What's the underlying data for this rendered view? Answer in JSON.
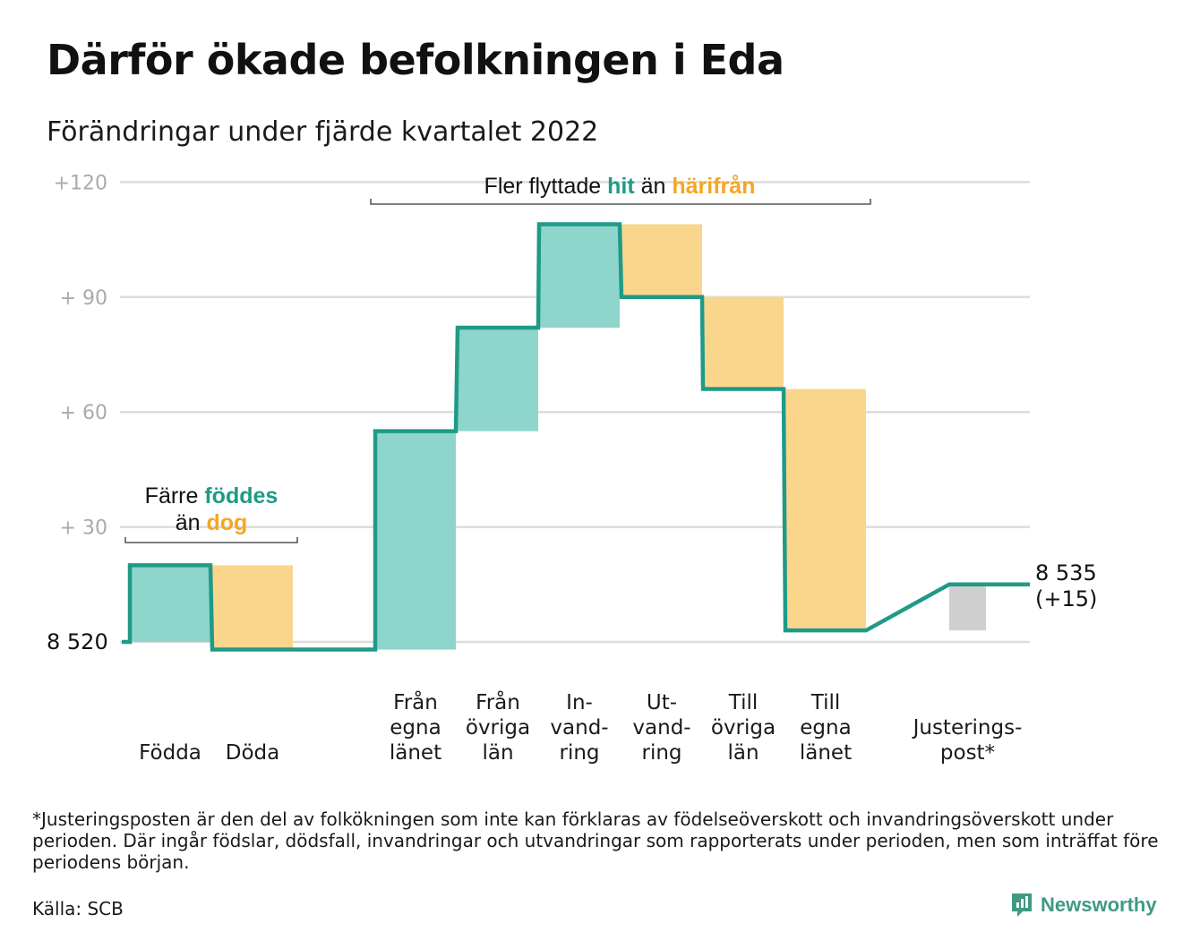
{
  "title": "Därför ökade befolkningen i Eda",
  "subtitle": "Förändringar under fjärde kvartalet 2022",
  "footnote": "*Justeringsposten är den del av folkökningen som inte kan förklaras av födelseöverskott och invandringsöverskott under perioden. Där ingår födslar, dödsfall, invandringar och utvandringar som rapporterats under perioden, men som inträffat före periodens början.",
  "source": "Källa: SCB",
  "brand": {
    "name": "Newsworthy"
  },
  "colors": {
    "line": "#1f9a87",
    "increase": "#8ed5cc",
    "decrease": "#fad68d",
    "adjustment": "#cfcfcf",
    "teal_text": "#1f9a87",
    "orange_text": "#f5a623",
    "grid": "#dddddd",
    "tick": "#aaaaaa"
  },
  "annotations": {
    "birth_death": {
      "line1_pre": "Färre ",
      "line1_hl": "föddes",
      "line2_pre": "än ",
      "line2_hl": "dog"
    },
    "migration": {
      "pre": "Fler flyttade ",
      "hl1": "hit",
      "mid": " än ",
      "hl2": "härifrån"
    }
  },
  "chart_data": {
    "type": "waterfall",
    "start_label": "8 520",
    "end_label_line1": "8 535",
    "end_label_line2": "(+15)",
    "start_value": 8520,
    "end_value": 8535,
    "y_ticks": [
      "+120",
      "+ 90",
      "+ 60",
      "+ 30"
    ],
    "y_tick_values": [
      120,
      90,
      60,
      30
    ],
    "ylim": [
      0,
      120
    ],
    "categories": [
      {
        "label": [
          "Födda"
        ],
        "change": 20
      },
      {
        "label": [
          "Döda"
        ],
        "change": -22
      },
      {
        "label": [
          "Från",
          "egna",
          "länet"
        ],
        "change": 57
      },
      {
        "label": [
          "Från",
          "övriga",
          "län"
        ],
        "change": 27
      },
      {
        "label": [
          "In-",
          "vand-",
          "ring"
        ],
        "change": 27
      },
      {
        "label": [
          "Ut-",
          "vand-",
          "ring"
        ],
        "change": -19
      },
      {
        "label": [
          "Till",
          "övriga",
          "län"
        ],
        "change": -24
      },
      {
        "label": [
          "Till",
          "egna",
          "länet"
        ],
        "change": -63
      },
      {
        "label": [
          "Justerings-",
          "post*"
        ],
        "change": 12
      }
    ]
  }
}
